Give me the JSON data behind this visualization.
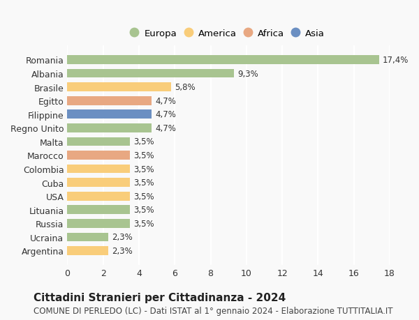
{
  "countries": [
    "Romania",
    "Albania",
    "Brasile",
    "Egitto",
    "Filippine",
    "Regno Unito",
    "Malta",
    "Marocco",
    "Colombia",
    "Cuba",
    "USA",
    "Lituania",
    "Russia",
    "Ucraina",
    "Argentina"
  ],
  "values": [
    17.4,
    9.3,
    5.8,
    4.7,
    4.7,
    4.7,
    3.5,
    3.5,
    3.5,
    3.5,
    3.5,
    3.5,
    3.5,
    2.3,
    2.3
  ],
  "regions": [
    "Europa",
    "Europa",
    "America",
    "Africa",
    "Asia",
    "Europa",
    "Europa",
    "Africa",
    "America",
    "America",
    "America",
    "Europa",
    "Europa",
    "Europa",
    "America"
  ],
  "labels": [
    "17,4%",
    "9,3%",
    "5,8%",
    "4,7%",
    "4,7%",
    "4,7%",
    "3,5%",
    "3,5%",
    "3,5%",
    "3,5%",
    "3,5%",
    "3,5%",
    "3,5%",
    "2,3%",
    "2,3%"
  ],
  "colors": {
    "Europa": "#a8c490",
    "America": "#f9cd7a",
    "Africa": "#e8a882",
    "Asia": "#6b8fc2"
  },
  "legend_labels": [
    "Europa",
    "America",
    "Africa",
    "Asia"
  ],
  "legend_colors": [
    "#a8c490",
    "#f9cd7a",
    "#e8a882",
    "#6b8fc2"
  ],
  "title": "Cittadini Stranieri per Cittadinanza - 2024",
  "subtitle": "COMUNE DI PERLEDO (LC) - Dati ISTAT al 1° gennaio 2024 - Elaborazione TUTTITALIA.IT",
  "xlim": [
    0,
    18
  ],
  "xticks": [
    0,
    2,
    4,
    6,
    8,
    10,
    12,
    14,
    16,
    18
  ],
  "background_color": "#f9f9f9",
  "grid_color": "#ffffff",
  "title_fontsize": 11,
  "subtitle_fontsize": 8.5,
  "tick_fontsize": 9,
  "label_fontsize": 8.5
}
